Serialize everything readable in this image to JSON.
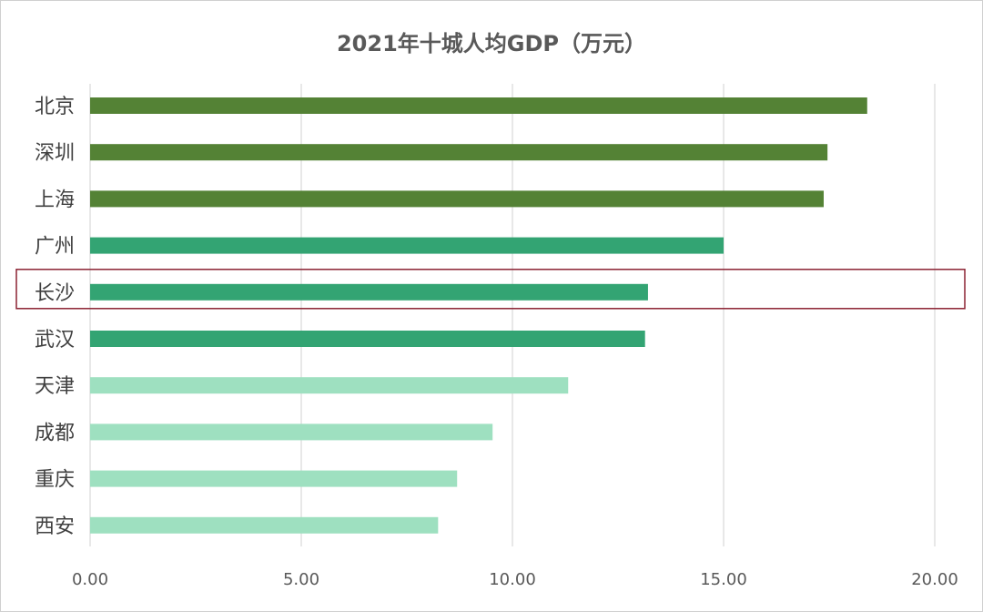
{
  "chart_data": {
    "type": "bar",
    "orientation": "horizontal",
    "title": "2021年十城人均GDP（万元）",
    "categories": [
      "北京",
      "深圳",
      "上海",
      "广州",
      "长沙",
      "武汉",
      "天津",
      "成都",
      "重庆",
      "西安"
    ],
    "values": [
      18.4,
      17.46,
      17.37,
      15.0,
      13.21,
      13.14,
      11.32,
      9.53,
      8.69,
      8.24
    ],
    "bar_colors": [
      "#548235",
      "#548235",
      "#548235",
      "#33a473",
      "#33a473",
      "#33a473",
      "#9ee0c0",
      "#9ee0c0",
      "#9ee0c0",
      "#9ee0c0"
    ],
    "highlighted_category": "长沙",
    "highlight_color": "#8b2232",
    "xlim": [
      0,
      20
    ],
    "xticks": [
      0,
      5,
      10,
      15,
      20
    ],
    "xtick_labels": [
      "0.00",
      "5.00",
      "10.00",
      "15.00",
      "20.00"
    ],
    "grid": "vertical",
    "legend": "none",
    "xlabel": "",
    "ylabel": ""
  }
}
